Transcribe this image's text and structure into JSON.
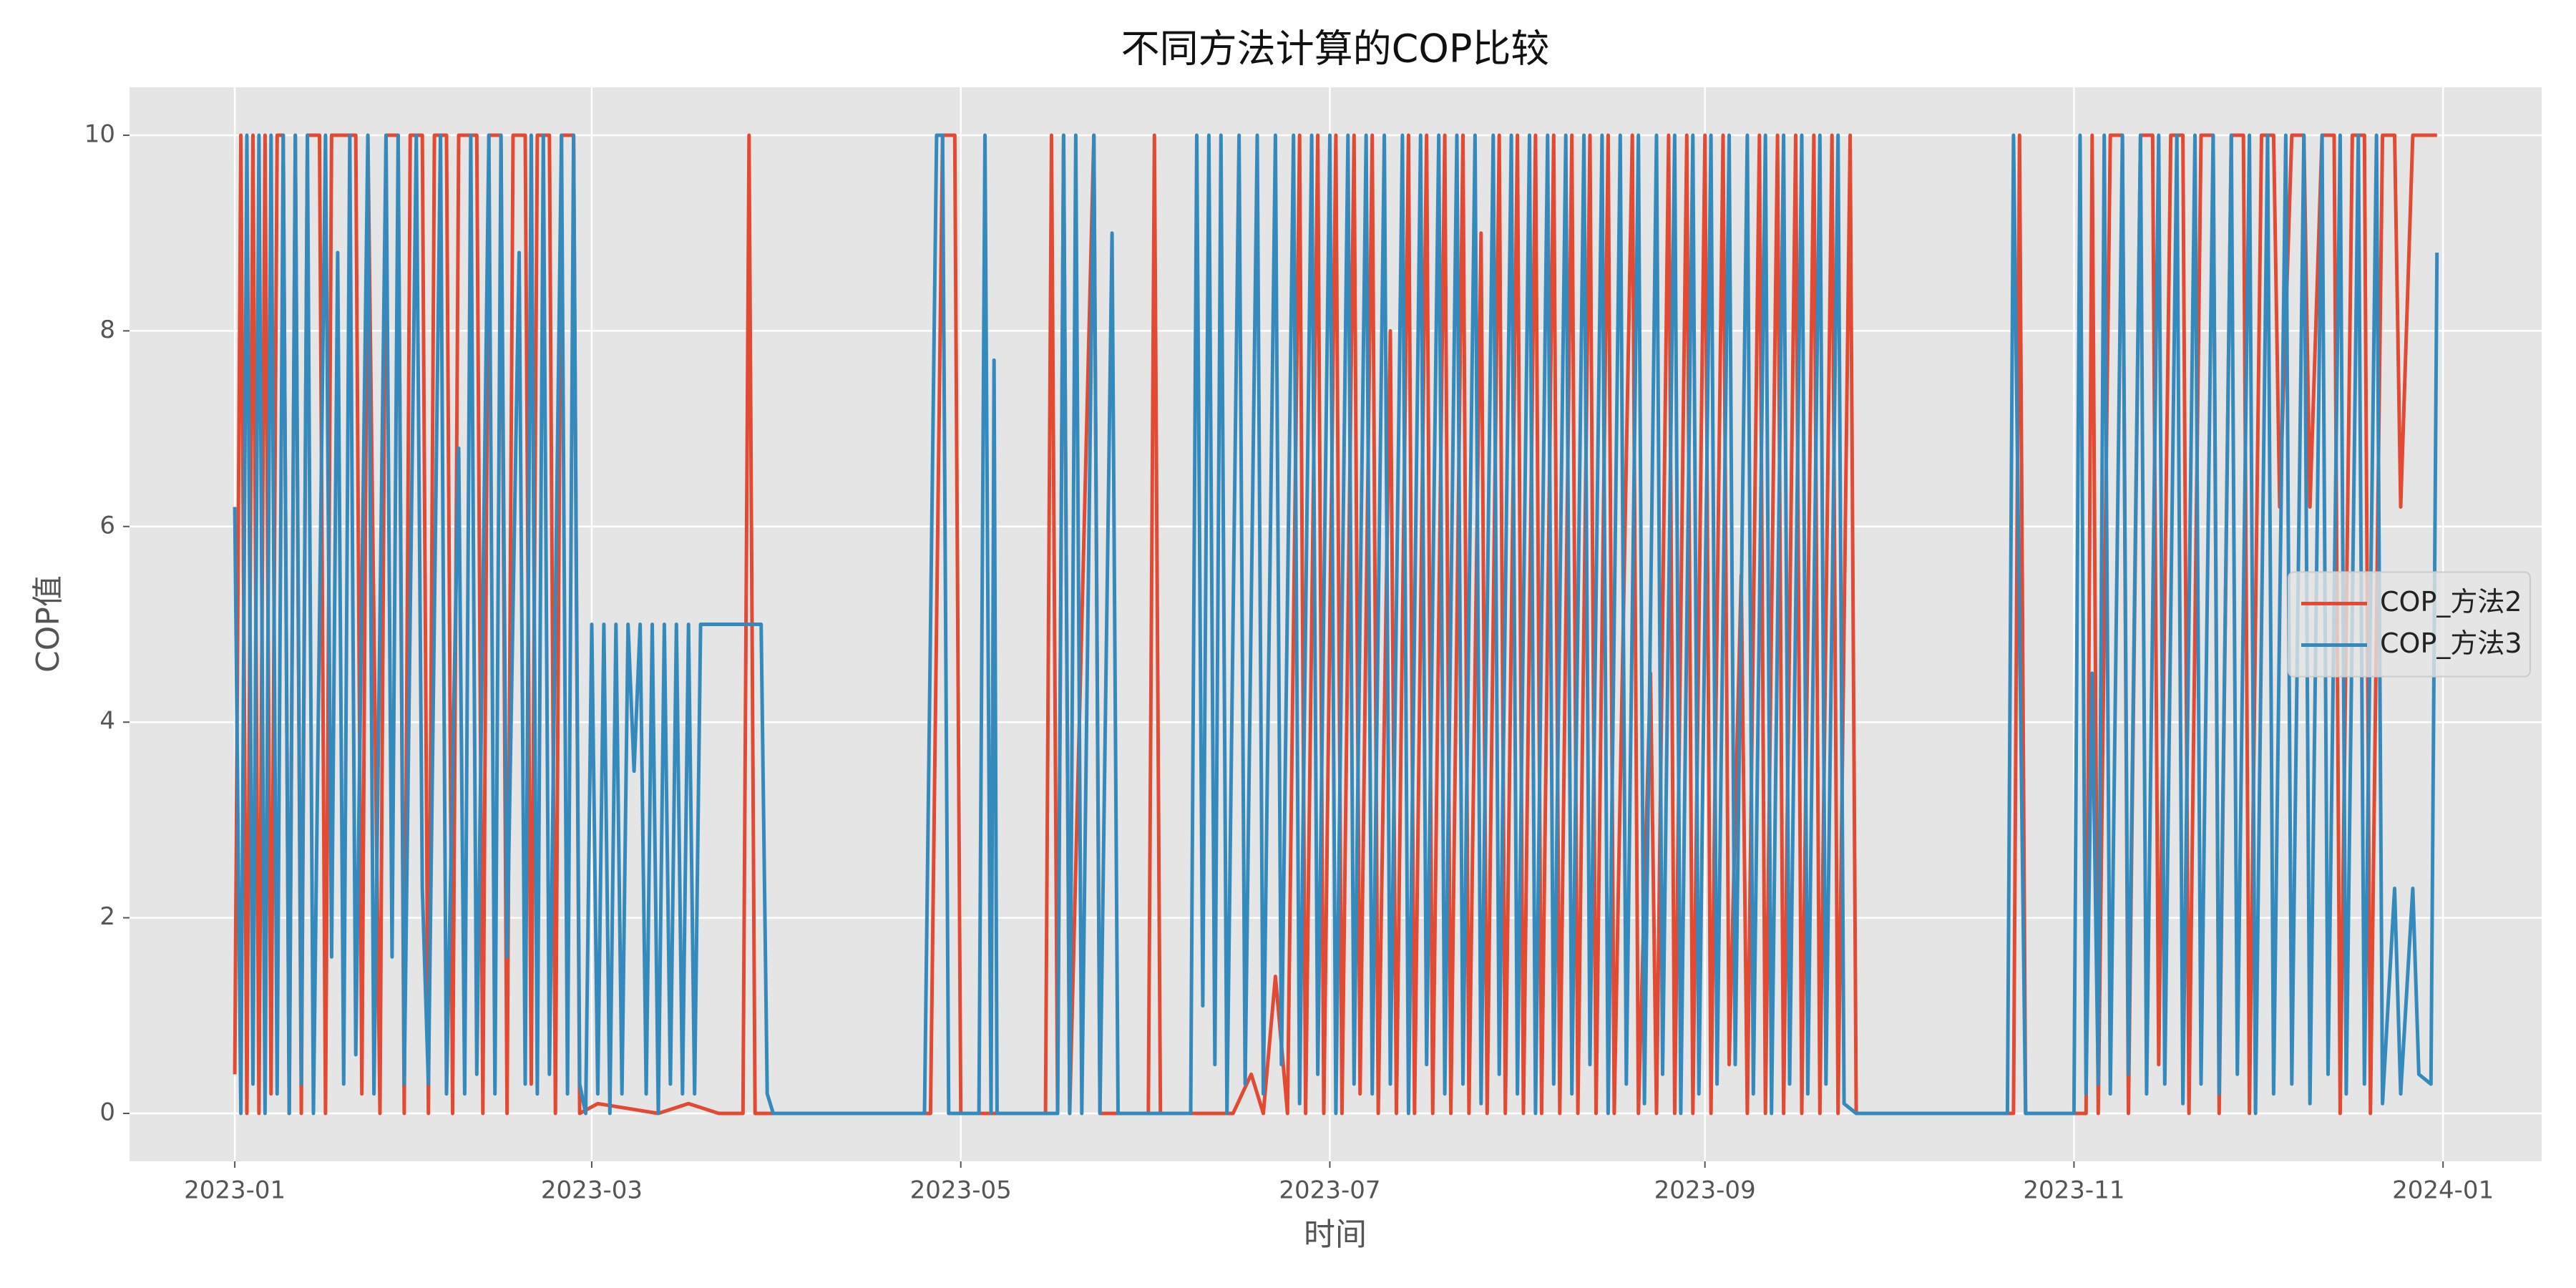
{
  "chart_data": {
    "type": "line",
    "title": "不同方法计算的COP比较",
    "x_label": "时间",
    "y_label": "COP值",
    "xlim": [
      -17.4,
      381.3
    ],
    "xticks": [
      {
        "value": 0,
        "label": "2023-01"
      },
      {
        "value": 59,
        "label": "2023-03"
      },
      {
        "value": 120,
        "label": "2023-05"
      },
      {
        "value": 181,
        "label": "2023-07"
      },
      {
        "value": 243,
        "label": "2023-09"
      },
      {
        "value": 304,
        "label": "2023-11"
      },
      {
        "value": 365,
        "label": "2024-01"
      }
    ],
    "ylim": [
      -0.49,
      10.49
    ],
    "yticks": [
      0,
      2,
      4,
      6,
      8,
      10
    ],
    "grid": true,
    "legend": "center right",
    "series": [
      {
        "name": "COP_方法2",
        "color": "#E24A33",
        "x": [
          0,
          1,
          2,
          3,
          4,
          5,
          6,
          7,
          8,
          9,
          10,
          11,
          12,
          14,
          15,
          16,
          20,
          21,
          22,
          24,
          25,
          27,
          28,
          29,
          31,
          32,
          33,
          35,
          36,
          37,
          40,
          41,
          42,
          44,
          45,
          46,
          48,
          49,
          50,
          52,
          53,
          54,
          56,
          57,
          60,
          70,
          75,
          80,
          84,
          85,
          86,
          115,
          117,
          119,
          120,
          134,
          135,
          136,
          137,
          138,
          142,
          143,
          151,
          152,
          153,
          165,
          168,
          170,
          172,
          174,
          176,
          177,
          179,
          180,
          182,
          183,
          185,
          186,
          188,
          189,
          191,
          192,
          194,
          195,
          197,
          198,
          200,
          201,
          203,
          204,
          206,
          207,
          209,
          210,
          212,
          213,
          215,
          216,
          218,
          219,
          221,
          222,
          224,
          225,
          227,
          228,
          231,
          232,
          234,
          235,
          237,
          238,
          240,
          241,
          243,
          244,
          246,
          247,
          249,
          250,
          252,
          253,
          255,
          256,
          258,
          259,
          261,
          262,
          264,
          265,
          267,
          268,
          294,
          295,
          296,
          306,
          307,
          308,
          310,
          312,
          313,
          315,
          317,
          318,
          320,
          322,
          323,
          325,
          327,
          328,
          330,
          332,
          333,
          335,
          337,
          338,
          340,
          342,
          343,
          345,
          347,
          348,
          350,
          352,
          353,
          355,
          357,
          358,
          360,
          364
        ],
        "values": [
          0.4,
          10,
          0,
          10,
          0,
          10,
          0.2,
          10,
          10,
          0,
          10,
          0,
          10,
          10,
          0,
          10,
          10,
          0.2,
          10,
          0,
          10,
          10,
          0,
          10,
          10,
          0,
          10,
          10,
          0,
          10,
          10,
          0,
          10,
          10,
          0,
          10,
          10,
          0.3,
          10,
          10,
          0,
          10,
          10,
          0,
          0.1,
          0,
          0.1,
          0,
          0,
          10,
          0,
          0,
          10,
          10,
          0,
          0,
          10,
          0,
          10,
          0,
          10,
          0,
          0,
          10,
          0,
          0,
          0.4,
          0,
          1.4,
          0,
          10,
          0,
          10,
          0,
          10,
          0,
          10,
          0.2,
          10,
          0,
          8,
          0,
          10,
          0,
          10,
          0,
          10,
          0,
          10,
          0,
          9,
          0,
          10,
          0,
          10,
          0,
          10,
          0,
          10,
          0,
          10,
          0,
          10,
          0,
          10,
          0,
          10,
          0,
          4.5,
          0,
          10,
          0,
          10,
          0,
          10,
          0,
          10,
          0.5,
          5.5,
          0,
          10,
          0,
          10,
          0,
          10,
          0,
          10,
          0,
          10,
          0,
          10,
          0,
          0,
          10,
          0,
          0,
          10,
          0,
          10,
          10,
          0,
          10,
          10,
          0.5,
          10,
          10,
          0,
          10,
          10,
          0,
          10,
          10,
          0,
          10,
          10,
          6.2,
          10,
          10,
          6.2,
          10,
          10,
          0,
          10,
          10,
          0,
          10,
          10,
          6.2,
          10,
          10
        ]
      },
      {
        "name": "COP_方法3",
        "color": "#348ABD",
        "x": [
          0,
          1,
          2,
          3,
          4,
          5,
          6,
          7,
          8,
          9,
          10,
          11,
          12,
          13,
          15,
          16,
          17,
          18,
          19,
          20,
          22,
          23,
          25,
          26,
          27,
          28,
          30,
          31,
          32,
          34,
          35,
          37,
          38,
          39,
          40,
          42,
          43,
          44,
          45,
          47,
          48,
          49,
          50,
          51,
          52,
          54,
          55,
          56,
          57,
          58,
          59,
          60,
          61,
          62,
          63,
          64,
          65,
          66,
          67,
          68,
          69,
          70,
          71,
          72,
          73,
          74,
          75,
          76,
          77,
          78,
          87,
          88,
          89,
          114,
          116,
          117,
          118,
          123,
          124,
          125,
          125.5,
          126,
          136,
          137,
          138,
          139,
          140,
          142,
          143,
          145,
          146,
          158,
          159,
          160,
          161,
          162,
          163,
          164,
          166,
          167,
          169,
          170,
          172,
          173,
          175,
          176,
          178,
          179,
          181,
          182,
          184,
          185,
          187,
          188,
          190,
          191,
          193,
          194,
          196,
          197,
          199,
          200,
          202,
          203,
          205,
          206,
          208,
          209,
          211,
          212,
          214,
          215,
          217,
          218,
          220,
          221,
          223,
          224,
          226,
          227,
          229,
          230,
          232,
          233,
          235,
          236,
          238,
          239,
          241,
          242,
          244,
          245,
          247,
          248,
          250,
          251,
          253,
          254,
          256,
          257,
          259,
          260,
          262,
          263,
          265,
          266,
          268,
          269,
          293,
          294,
          295,
          296,
          297,
          304,
          305,
          306,
          307,
          308,
          309,
          310,
          312,
          313,
          315,
          316,
          318,
          319,
          321,
          322,
          324,
          325,
          327,
          328,
          330,
          331,
          333,
          334,
          336,
          337,
          339,
          340,
          342,
          343,
          345,
          346,
          348,
          349,
          351,
          352,
          354,
          355,
          357,
          358,
          360,
          361,
          363,
          364
        ],
        "values": [
          6.2,
          0,
          10,
          0.3,
          10,
          0,
          10,
          0.2,
          10,
          0,
          10,
          0.3,
          10,
          0,
          10,
          1.6,
          8.8,
          0.3,
          10,
          0.6,
          10,
          0.2,
          10,
          1.6,
          10,
          0.3,
          10,
          2.3,
          0.3,
          10,
          0.2,
          6.8,
          0.2,
          10,
          0.4,
          10,
          0.2,
          10,
          1.6,
          8.8,
          0.3,
          10,
          0.2,
          10,
          0.4,
          10,
          0.2,
          10,
          0.3,
          0,
          5,
          0.2,
          5,
          0,
          5,
          0.2,
          5,
          3.5,
          5,
          0.2,
          5,
          0,
          5,
          0.3,
          5,
          0.2,
          5,
          0.2,
          5,
          5,
          5,
          0.2,
          0,
          0,
          10,
          10,
          0,
          0,
          10,
          0,
          7.7,
          0,
          0,
          10,
          0,
          10,
          0,
          10,
          0,
          9,
          0,
          0,
          10,
          1.1,
          10,
          0.5,
          10,
          0,
          10,
          0.3,
          10,
          0.2,
          10,
          0.5,
          10,
          0.1,
          10,
          0.4,
          10,
          0,
          10,
          0.3,
          10,
          0.2,
          10,
          0.3,
          10,
          0,
          10,
          0.5,
          10,
          0.2,
          10,
          0.3,
          10,
          0.1,
          10,
          0.4,
          10,
          0.2,
          10,
          0,
          10,
          0.3,
          10,
          0.2,
          10,
          0.5,
          10,
          0,
          10,
          0.3,
          10,
          0.1,
          10,
          0.4,
          10,
          0,
          10,
          0.2,
          10,
          0.3,
          10,
          0.5,
          10,
          0.2,
          10,
          0,
          10,
          0.3,
          10,
          0.2,
          10,
          0.3,
          10,
          0.1,
          0,
          0,
          0,
          10,
          5,
          0,
          0,
          0,
          10,
          0.2,
          4.5,
          0.3,
          10,
          0.2,
          10,
          0.4,
          10,
          0.2,
          10,
          0.3,
          10,
          0.1,
          10,
          0.3,
          10,
          0.2,
          10,
          0.4,
          10,
          0,
          10,
          0.2,
          10,
          0.3,
          10,
          0.1,
          10,
          0.4,
          10,
          0.2,
          10,
          0.3,
          10,
          0.1,
          2.3,
          0.2,
          2.3,
          0.4,
          0.3,
          8.8
        ]
      }
    ]
  }
}
